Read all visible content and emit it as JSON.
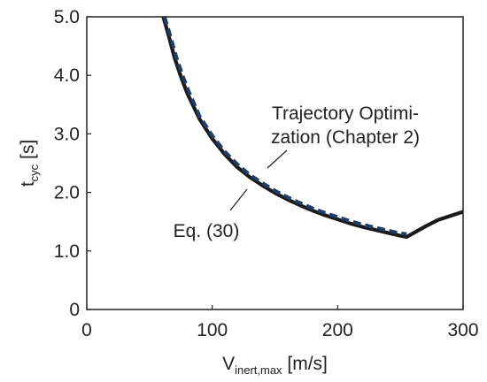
{
  "chart_data": {
    "type": "line",
    "xlabel": {
      "main": "V",
      "sub": "inert,max",
      "unit": " [m/s]"
    },
    "ylabel": {
      "main": "t",
      "sub": "cyc",
      "unit": " [s]"
    },
    "xlim": [
      0,
      300
    ],
    "ylim": [
      0,
      5
    ],
    "xticks": [
      "0",
      "100",
      "200",
      "300"
    ],
    "yticks": [
      "0",
      "1.0",
      "2.0",
      "3.0",
      "4.0",
      "5.0"
    ],
    "grid": false,
    "series": [
      {
        "name": "Eq. (30)",
        "style": "solid",
        "color": "#1a1a1a",
        "x": [
          61,
          65,
          70,
          75,
          80,
          90,
          100,
          110,
          120,
          130,
          140,
          150,
          160,
          170,
          180,
          190,
          200,
          210,
          220,
          230,
          240,
          250,
          255,
          260,
          270,
          280,
          290,
          300
        ],
        "y": [
          5.0,
          4.7,
          4.3,
          3.98,
          3.7,
          3.25,
          2.92,
          2.65,
          2.43,
          2.26,
          2.12,
          1.99,
          1.88,
          1.78,
          1.69,
          1.61,
          1.54,
          1.47,
          1.41,
          1.36,
          1.31,
          1.26,
          1.24,
          1.3,
          1.42,
          1.53,
          1.6,
          1.67
        ]
      },
      {
        "name": "Trajectory Optimization (Chapter 2)",
        "style": "dashed",
        "color": "#1f3d66",
        "x": [
          62,
          66,
          71,
          76,
          81,
          90,
          100,
          110,
          120,
          130,
          140,
          150,
          160,
          170,
          180,
          190,
          200,
          210,
          220,
          230,
          240,
          250,
          255
        ],
        "y": [
          5.0,
          4.72,
          4.34,
          4.02,
          3.74,
          3.3,
          2.97,
          2.7,
          2.48,
          2.3,
          2.16,
          2.03,
          1.92,
          1.82,
          1.73,
          1.65,
          1.58,
          1.51,
          1.45,
          1.4,
          1.35,
          1.3,
          1.29
        ]
      }
    ],
    "annotations": [
      {
        "lines": [
          "Trajectory Optimi-",
          "zation (Chapter 2)"
        ],
        "series": 1
      },
      {
        "lines": [
          "Eq. (30)"
        ],
        "series": 0
      }
    ]
  }
}
